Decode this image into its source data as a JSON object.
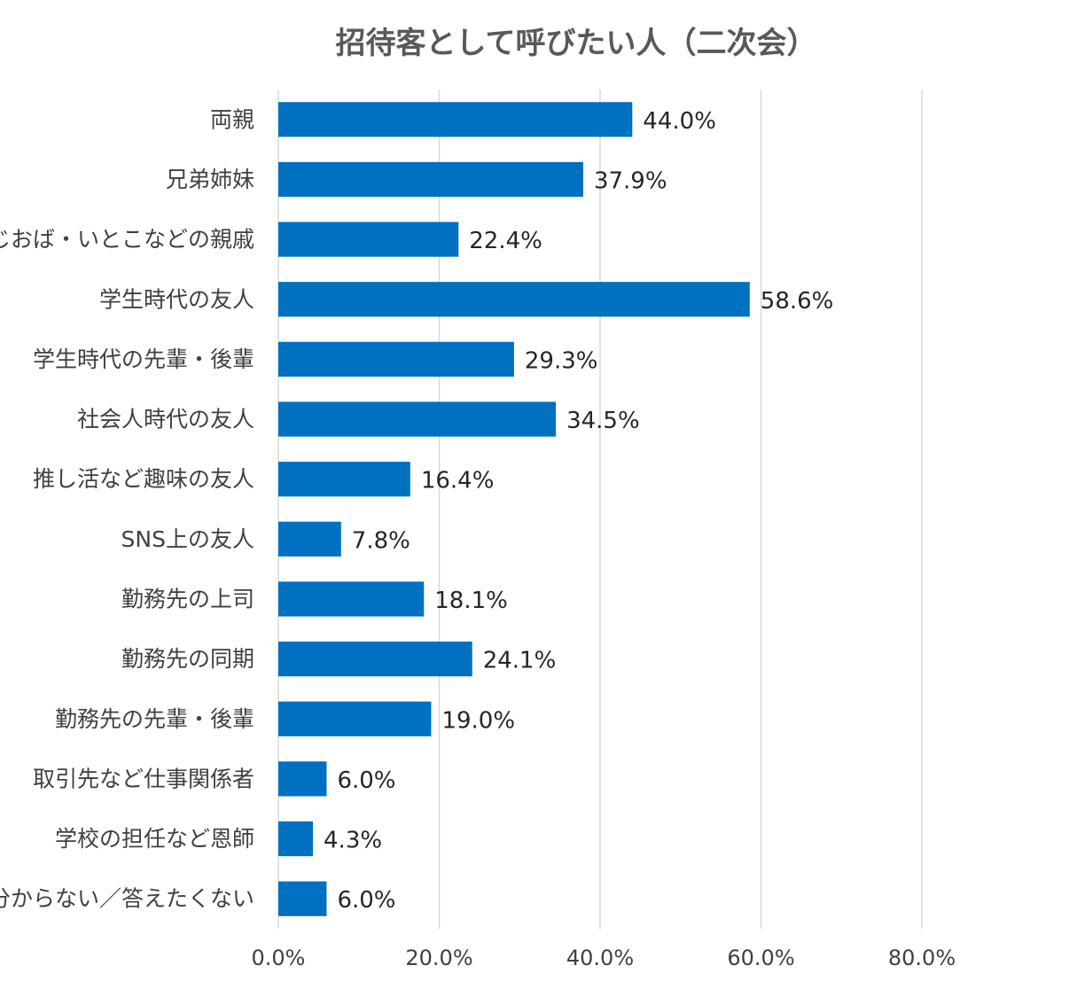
{
  "chart_data": {
    "type": "bar",
    "orientation": "horizontal",
    "title": "招待客として呼びたい人（二次会）",
    "categories": [
      "両親",
      "兄弟姉妹",
      "おじおば・いとこなどの親戚",
      "学生時代の友人",
      "学生時代の先輩・後輩",
      "社会人時代の友人",
      "推し活など趣味の友人",
      "SNS上の友人",
      "勤務先の上司",
      "勤務先の同期",
      "勤務先の先輩・後輩",
      "取引先など仕事関係者",
      "学校の担任など恩師",
      "分からない／答えたくない"
    ],
    "values": [
      44.0,
      37.9,
      22.4,
      58.6,
      29.3,
      34.5,
      16.4,
      7.8,
      18.1,
      24.1,
      19.0,
      6.0,
      4.3,
      6.0
    ],
    "value_labels": [
      "44.0%",
      "37.9%",
      "22.4%",
      "58.6%",
      "29.3%",
      "34.5%",
      "16.4%",
      "7.8%",
      "18.1%",
      "24.1%",
      "19.0%",
      "6.0%",
      "4.3%",
      "6.0%"
    ],
    "xlim": [
      0,
      80
    ],
    "x_ticks": [
      0,
      20,
      40,
      60,
      80
    ],
    "x_tick_labels": [
      "0.0%",
      "20.0%",
      "40.0%",
      "60.0%",
      "80.0%"
    ],
    "xlabel": "",
    "ylabel": "",
    "grid": true,
    "bar_color": "#0070C0"
  }
}
